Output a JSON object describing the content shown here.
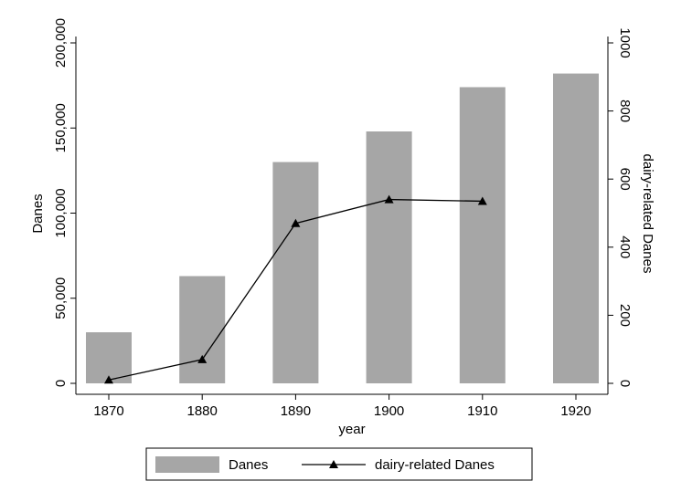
{
  "chart_data": {
    "type": "bar",
    "x_label": "year",
    "y_label": "Danes",
    "y2_label": "dairy-related Danes",
    "categories": [
      "1870",
      "1880",
      "1890",
      "1900",
      "1910",
      "1920"
    ],
    "series": [
      {
        "name": "Danes",
        "type": "bar",
        "color": "#a6a6a6",
        "values": [
          30000,
          63000,
          130000,
          148000,
          174000,
          182000
        ]
      },
      {
        "name": "dairy-related Danes",
        "type": "line",
        "axis": "y2",
        "color": "#000000",
        "values": [
          10,
          70,
          470,
          540,
          535,
          null
        ]
      }
    ],
    "ylim": [
      0,
      200000
    ],
    "yticks": [
      0,
      {
        "value": 50000,
        "label": "50,000"
      },
      {
        "value": 100000,
        "label": "100,000"
      },
      {
        "value": 150000,
        "label": "150,000"
      },
      {
        "value": 200000,
        "label": "200,000"
      }
    ],
    "y2lim": [
      0,
      1000
    ],
    "y2ticks": [
      0,
      200,
      400,
      600,
      800,
      1000
    ],
    "legend": "bottom"
  }
}
